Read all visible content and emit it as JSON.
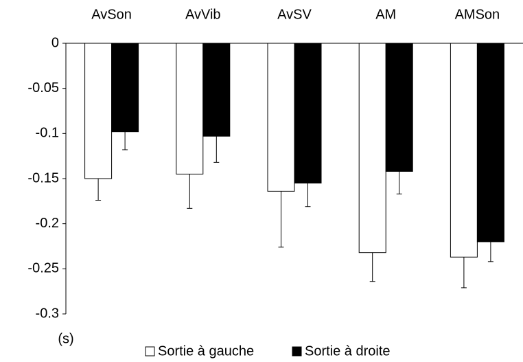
{
  "chart_data": {
    "type": "bar",
    "y_label": "(s)",
    "categories": [
      "AvSon",
      "AvVib",
      "AvSV",
      "AM",
      "AMSon"
    ],
    "series": [
      {
        "name": "Sortie à gauche",
        "color": "#ffffff",
        "values": [
          -0.15,
          -0.145,
          -0.164,
          -0.232,
          -0.237
        ],
        "errors": [
          0.024,
          0.038,
          0.062,
          0.032,
          0.034
        ]
      },
      {
        "name": "Sortie à droite",
        "color": "#000000",
        "values": [
          -0.098,
          -0.103,
          -0.155,
          -0.142,
          -0.22
        ],
        "errors": [
          0.02,
          0.029,
          0.026,
          0.025,
          0.022
        ]
      }
    ],
    "ylim": [
      -0.3,
      0
    ],
    "yticks": [
      0,
      -0.05,
      -0.1,
      -0.15,
      -0.2,
      -0.25,
      -0.3
    ],
    "grid": false,
    "legend": "bottom"
  }
}
